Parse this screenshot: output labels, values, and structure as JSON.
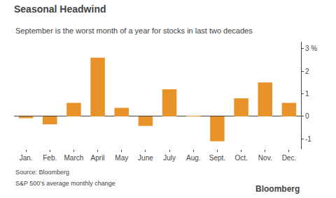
{
  "chart_data": {
    "type": "bar",
    "title": "Seasonal Headwind",
    "subtitle": "September is the worst month of a year for stocks in last two decades",
    "annotations": [
      "Source: Bloomberg",
      "S&P 500’s average monthly change",
      "Bloomberg"
    ],
    "categories": [
      "Jan.",
      "Feb.",
      "March",
      "April",
      "May",
      "June",
      "July",
      "Aug.",
      "Sept.",
      "Oct.",
      "Nov.",
      "Dec."
    ],
    "values": [
      -0.08,
      -0.35,
      0.6,
      2.6,
      0.38,
      -0.42,
      1.2,
      0.02,
      -1.1,
      0.8,
      1.5,
      0.6
    ],
    "color": "#E8922A",
    "ylim": [
      -1.45,
      3.3
    ],
    "yticks": [
      -1,
      0,
      1,
      2,
      {
        "value": 3,
        "label": "3 %"
      }
    ],
    "grid": false
  }
}
